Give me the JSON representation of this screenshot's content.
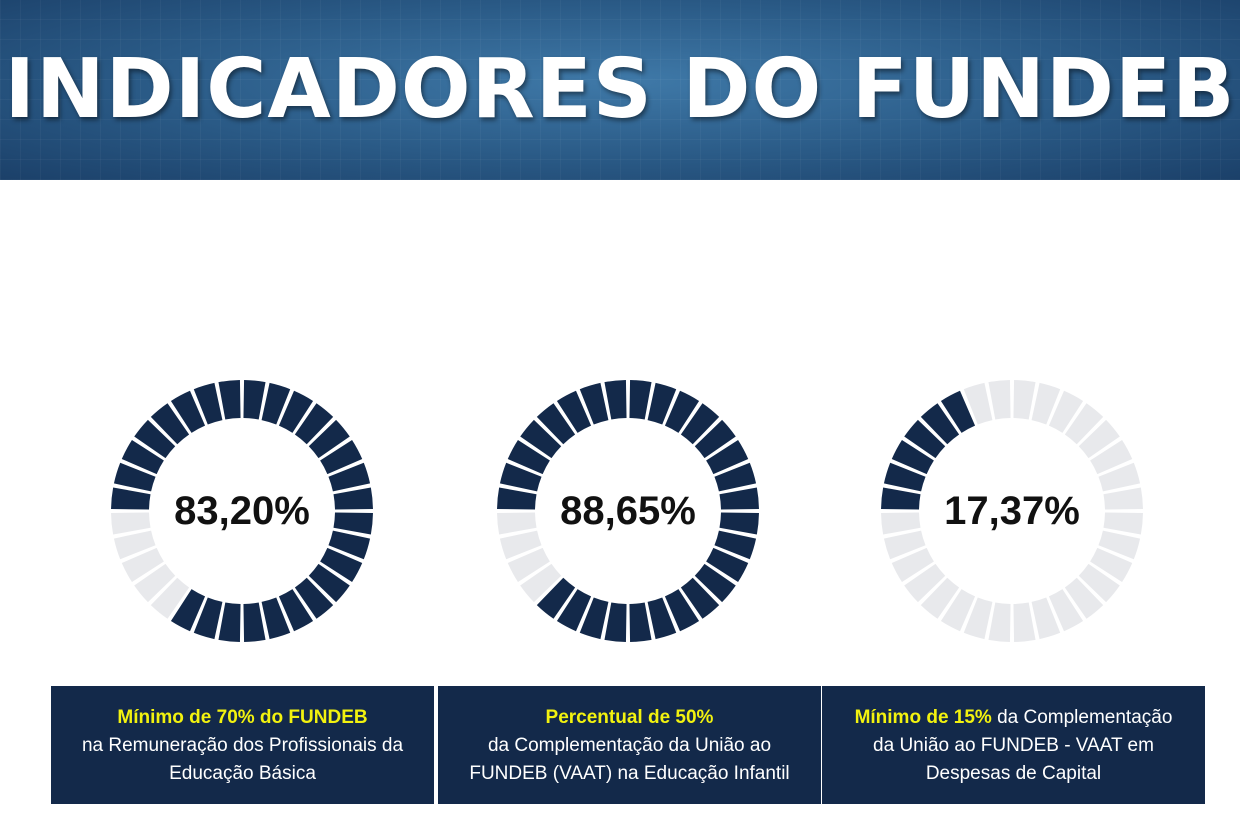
{
  "header": {
    "title": "INDICADORES DO FUNDEB"
  },
  "colors": {
    "filled": "#13294a",
    "empty": "#e8e9ec",
    "highlight": "#f2f20f",
    "box": "#13294a"
  },
  "chart_data": [
    {
      "type": "pie",
      "style": "segmented-donut",
      "value_label": "83,20%",
      "value": 83.2,
      "max": 100
    },
    {
      "type": "pie",
      "style": "segmented-donut",
      "value_label": "88,65%",
      "value": 88.65,
      "max": 100
    },
    {
      "type": "pie",
      "style": "segmented-donut",
      "value_label": "17,37%",
      "value": 17.37,
      "max": 100
    }
  ],
  "boxes": [
    {
      "highlight": "Mínimo de 70% do FUNDEB",
      "line1_rest": "",
      "line2": "na Remuneração dos Profissionais da",
      "line3": "Educação Básica"
    },
    {
      "highlight": "Percentual de 50%",
      "line1_rest": "",
      "line2": "da Complementação da União ao",
      "line3": "FUNDEB (VAAT) na Educação Infantil"
    },
    {
      "highlight": "Mínimo de 15%",
      "line1_rest": " da Complementação",
      "line2": "da União ao FUNDEB - VAAT em",
      "line3": "Despesas de Capital"
    }
  ]
}
